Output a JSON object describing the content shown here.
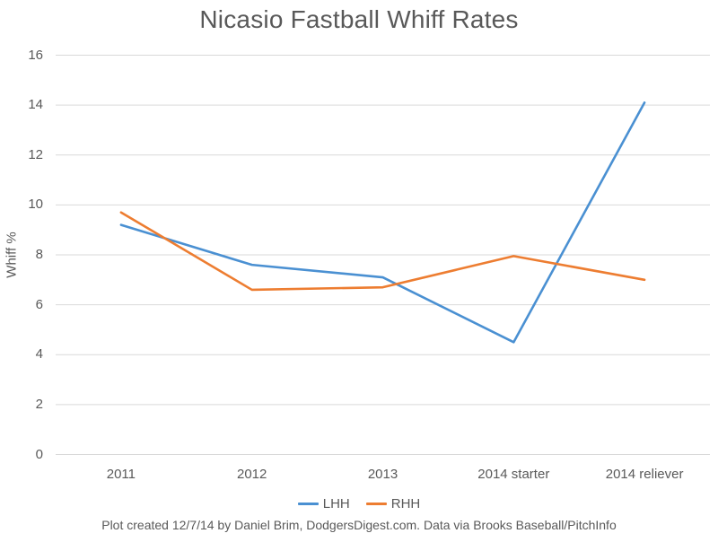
{
  "title": "Nicasio Fastball Whiff Rates",
  "footer": "Plot created 12/7/14 by Daniel Brim, DodgersDigest.com. Data via Brooks Baseball/PitchInfo",
  "colors": {
    "lhh_line": "#4A90D2",
    "rhh_line": "#ED7D31",
    "text_gray": "#595959",
    "gridline": "#D9D9D9",
    "background": "#FFFFFF"
  },
  "chart_data": {
    "type": "line",
    "title": "Nicasio Fastball Whiff Rates",
    "categories": [
      "2011",
      "2012",
      "2013",
      "2014 starter",
      "2014 reliever"
    ],
    "series": [
      {
        "name": "LHH",
        "color": "#4A90D2",
        "values": [
          9.2,
          7.6,
          7.1,
          4.5,
          14.1
        ]
      },
      {
        "name": "RHH",
        "color": "#ED7D31",
        "values": [
          9.7,
          6.6,
          6.7,
          7.95,
          7.0
        ]
      }
    ],
    "xlabel": "",
    "ylabel": "Whiff %",
    "ylim": [
      0,
      16
    ],
    "ytick_step": 2,
    "yticks": [
      0,
      2,
      4,
      6,
      8,
      10,
      12,
      14,
      16
    ],
    "grid": "horizontal-only",
    "legend_position": "bottom-center",
    "legend": [
      "LHH",
      "RHH"
    ]
  }
}
